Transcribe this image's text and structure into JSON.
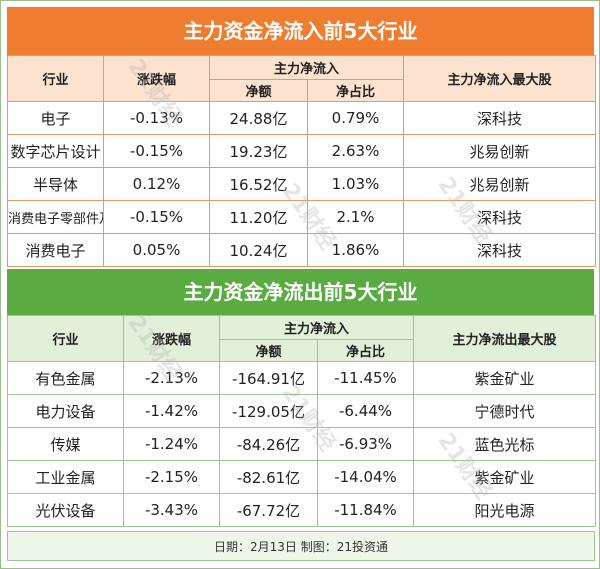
{
  "inflow": {
    "title": "主力资金净流入前5大行业",
    "headers": {
      "industry": "行业",
      "change": "涨跌幅",
      "group": "主力净流入",
      "net": "净额",
      "ratio": "净占比",
      "top_stock": "主力净流入最大股"
    },
    "rows": [
      {
        "industry": "电子",
        "change": "-0.13%",
        "net": "24.88亿",
        "ratio": "0.79%",
        "stock": "深科技"
      },
      {
        "industry": "数字芯片设计",
        "change": "-0.15%",
        "net": "19.23亿",
        "ratio": "2.63%",
        "stock": "兆易创新"
      },
      {
        "industry": "半导体",
        "change": "0.12%",
        "net": "16.52亿",
        "ratio": "1.03%",
        "stock": "兆易创新"
      },
      {
        "industry": "消费电子零部件及组装",
        "change": "-0.15%",
        "net": "11.20亿",
        "ratio": "2.1%",
        "stock": "深科技"
      },
      {
        "industry": "消费电子",
        "change": "0.05%",
        "net": "10.24亿",
        "ratio": "1.86%",
        "stock": "深科技"
      }
    ]
  },
  "outflow": {
    "title": "主力资金净流出前5大行业",
    "headers": {
      "industry": "行业",
      "change": "涨跌幅",
      "group": "主力净流入",
      "net": "净额",
      "ratio": "净占比",
      "top_stock": "主力净流出最大股"
    },
    "rows": [
      {
        "industry": "有色金属",
        "change": "-2.13%",
        "net": "-164.91亿",
        "ratio": "-11.45%",
        "stock": "紫金矿业"
      },
      {
        "industry": "电力设备",
        "change": "-1.42%",
        "net": "-129.05亿",
        "ratio": "-6.44%",
        "stock": "宁德时代"
      },
      {
        "industry": "传媒",
        "change": "-1.24%",
        "net": "-84.26亿",
        "ratio": "-6.93%",
        "stock": "蓝色光标"
      },
      {
        "industry": "工业金属",
        "change": "-2.15%",
        "net": "-82.61亿",
        "ratio": "-14.04%",
        "stock": "紫金矿业"
      },
      {
        "industry": "光伏设备",
        "change": "-3.43%",
        "net": "-67.72亿",
        "ratio": "-11.84%",
        "stock": "阳光电源"
      }
    ]
  },
  "footer": "日期：2月13日 制图：21投资通",
  "watermark": "21财经",
  "colors": {
    "inflow_accent": "#f07d2f",
    "outflow_accent": "#5aab42"
  }
}
